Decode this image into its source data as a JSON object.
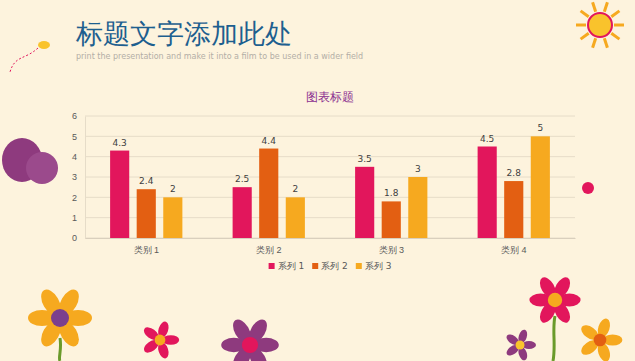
{
  "title": "标题文字添加此处",
  "subtitle": "print the presentation and make it into a film to be used in a wider field",
  "chart_data": {
    "type": "bar",
    "title": "图表标题",
    "categories": [
      "类别 1",
      "类别 2",
      "类别 3",
      "类别 4"
    ],
    "series": [
      {
        "name": "系列 1",
        "color": "#e2165c",
        "values": [
          4.3,
          2.5,
          3.5,
          4.5
        ]
      },
      {
        "name": "系列 2",
        "color": "#e35f12",
        "values": [
          2.4,
          4.4,
          1.8,
          2.8
        ]
      },
      {
        "name": "系列 3",
        "color": "#f6a91f",
        "values": [
          2,
          2,
          3,
          5
        ]
      }
    ],
    "ylim": [
      0,
      6
    ],
    "yticks": [
      0,
      1,
      2,
      3,
      4,
      5,
      6
    ],
    "grid": true,
    "data_labels": true,
    "legend": "bottom"
  }
}
